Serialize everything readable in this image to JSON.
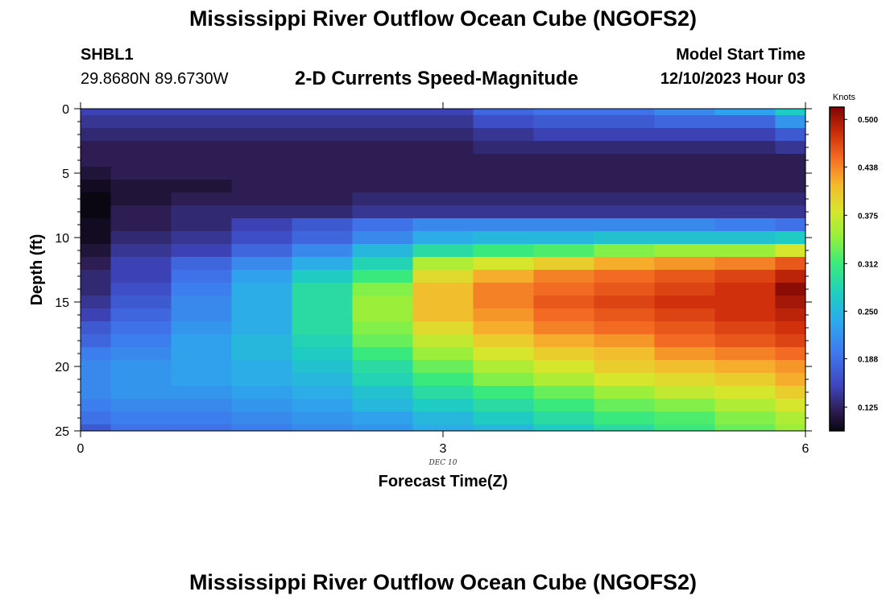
{
  "header": {
    "title": "Mississippi River Outflow Ocean Cube (NGOFS2)",
    "station_id": "SHBL1",
    "coordinates": "29.8680N  89.6730W",
    "subtitle": "2-D Currents Speed-Magnitude",
    "model_start_label": "Model Start Time",
    "model_start_value": "12/10/2023 Hour 03"
  },
  "footer": {
    "title": "Mississippi River Outflow Ocean Cube (NGOFS2)"
  },
  "chart_data": {
    "type": "heatmap",
    "title": "2-D Currents Speed-Magnitude",
    "xlabel": "Forecast Time(Z)",
    "ylabel": "Depth (ft)",
    "x_date_label": "DEC 10",
    "xlim": [
      0,
      6
    ],
    "ylim": [
      0,
      25
    ],
    "y_inverted": true,
    "x_ticks": [
      "0",
      "3",
      "6"
    ],
    "y_ticks": [
      "0",
      "5",
      "10",
      "15",
      "20",
      "25"
    ],
    "x_columns": [
      0.125,
      0.5,
      1,
      1.5,
      2,
      2.5,
      3,
      3.5,
      4,
      4.5,
      5,
      5.5,
      5.875
    ],
    "x_column_edges": [
      0,
      0.25,
      0.75,
      1.25,
      1.75,
      2.25,
      2.75,
      3.25,
      3.75,
      4.25,
      4.75,
      5.25,
      5.75,
      6
    ],
    "depth_edges": [
      0,
      0.5,
      1.5,
      2.5,
      3.5,
      4.5,
      5.5,
      6.5,
      7.5,
      8.5,
      9.5,
      10.5,
      11.5,
      12.5,
      13.5,
      14.5,
      15.5,
      16.5,
      17.5,
      18.5,
      19.5,
      20.5,
      21.5,
      22.5,
      23.5,
      24.5,
      25
    ],
    "colorbar": {
      "label": "Knots",
      "ticks": [
        0.5,
        0.438,
        0.375,
        0.312,
        0.25,
        0.188,
        0.125
      ],
      "tick_labels": [
        "0.500",
        "0.438",
        "0.375",
        "0.312",
        "0.250",
        "0.188",
        "0.125"
      ],
      "range": [
        0.094,
        0.516
      ]
    },
    "values": [
      [
        0.15,
        0.15,
        0.15,
        0.15,
        0.15,
        0.15,
        0.15,
        0.18,
        0.19,
        0.19,
        0.21,
        0.23,
        0.27
      ],
      [
        0.14,
        0.14,
        0.14,
        0.14,
        0.14,
        0.14,
        0.14,
        0.16,
        0.17,
        0.17,
        0.18,
        0.18,
        0.22
      ],
      [
        0.13,
        0.13,
        0.13,
        0.13,
        0.13,
        0.13,
        0.13,
        0.14,
        0.15,
        0.15,
        0.15,
        0.15,
        0.17
      ],
      [
        0.12,
        0.12,
        0.12,
        0.12,
        0.12,
        0.12,
        0.12,
        0.13,
        0.13,
        0.13,
        0.13,
        0.13,
        0.14
      ],
      [
        0.12,
        0.12,
        0.12,
        0.12,
        0.12,
        0.12,
        0.12,
        0.12,
        0.12,
        0.12,
        0.12,
        0.12,
        0.12
      ],
      [
        0.11,
        0.12,
        0.12,
        0.12,
        0.12,
        0.12,
        0.12,
        0.12,
        0.12,
        0.12,
        0.12,
        0.12,
        0.12
      ],
      [
        0.1,
        0.11,
        0.11,
        0.12,
        0.12,
        0.12,
        0.12,
        0.12,
        0.12,
        0.12,
        0.12,
        0.12,
        0.12
      ],
      [
        0.06,
        0.11,
        0.12,
        0.12,
        0.12,
        0.13,
        0.13,
        0.13,
        0.13,
        0.13,
        0.13,
        0.13,
        0.13
      ],
      [
        0.09,
        0.12,
        0.13,
        0.13,
        0.13,
        0.14,
        0.14,
        0.14,
        0.14,
        0.14,
        0.14,
        0.14,
        0.14
      ],
      [
        0.1,
        0.12,
        0.13,
        0.15,
        0.17,
        0.19,
        0.21,
        0.21,
        0.21,
        0.21,
        0.21,
        0.2,
        0.19
      ],
      [
        0.1,
        0.13,
        0.14,
        0.16,
        0.18,
        0.21,
        0.24,
        0.25,
        0.25,
        0.26,
        0.26,
        0.26,
        0.27
      ],
      [
        0.11,
        0.14,
        0.15,
        0.18,
        0.21,
        0.25,
        0.29,
        0.31,
        0.32,
        0.34,
        0.35,
        0.35,
        0.38
      ],
      [
        0.12,
        0.15,
        0.18,
        0.21,
        0.24,
        0.28,
        0.36,
        0.38,
        0.4,
        0.42,
        0.43,
        0.44,
        0.46
      ],
      [
        0.13,
        0.15,
        0.19,
        0.23,
        0.27,
        0.31,
        0.39,
        0.42,
        0.44,
        0.45,
        0.46,
        0.47,
        0.49
      ],
      [
        0.13,
        0.16,
        0.2,
        0.24,
        0.29,
        0.34,
        0.41,
        0.44,
        0.45,
        0.46,
        0.47,
        0.48,
        0.51
      ],
      [
        0.14,
        0.17,
        0.21,
        0.24,
        0.29,
        0.35,
        0.41,
        0.44,
        0.46,
        0.47,
        0.48,
        0.48,
        0.5
      ],
      [
        0.15,
        0.18,
        0.21,
        0.24,
        0.29,
        0.35,
        0.41,
        0.43,
        0.45,
        0.46,
        0.47,
        0.48,
        0.49
      ],
      [
        0.17,
        0.19,
        0.22,
        0.24,
        0.29,
        0.34,
        0.39,
        0.42,
        0.44,
        0.45,
        0.46,
        0.47,
        0.48
      ],
      [
        0.18,
        0.2,
        0.23,
        0.25,
        0.28,
        0.33,
        0.37,
        0.4,
        0.42,
        0.43,
        0.45,
        0.46,
        0.47
      ],
      [
        0.2,
        0.21,
        0.23,
        0.25,
        0.27,
        0.31,
        0.35,
        0.38,
        0.4,
        0.41,
        0.43,
        0.44,
        0.45
      ],
      [
        0.21,
        0.22,
        0.23,
        0.24,
        0.26,
        0.29,
        0.33,
        0.36,
        0.38,
        0.4,
        0.41,
        0.42,
        0.43
      ],
      [
        0.21,
        0.22,
        0.23,
        0.24,
        0.25,
        0.28,
        0.31,
        0.34,
        0.36,
        0.38,
        0.39,
        0.4,
        0.42
      ],
      [
        0.21,
        0.22,
        0.22,
        0.23,
        0.24,
        0.26,
        0.29,
        0.31,
        0.33,
        0.35,
        0.37,
        0.38,
        0.4
      ],
      [
        0.2,
        0.21,
        0.21,
        0.22,
        0.23,
        0.25,
        0.27,
        0.29,
        0.31,
        0.33,
        0.34,
        0.36,
        0.38
      ],
      [
        0.19,
        0.2,
        0.2,
        0.21,
        0.22,
        0.23,
        0.25,
        0.27,
        0.29,
        0.31,
        0.32,
        0.34,
        0.36
      ],
      [
        0.17,
        0.19,
        0.19,
        0.2,
        0.21,
        0.22,
        0.24,
        0.25,
        0.27,
        0.29,
        0.31,
        0.33,
        0.35
      ]
    ]
  }
}
